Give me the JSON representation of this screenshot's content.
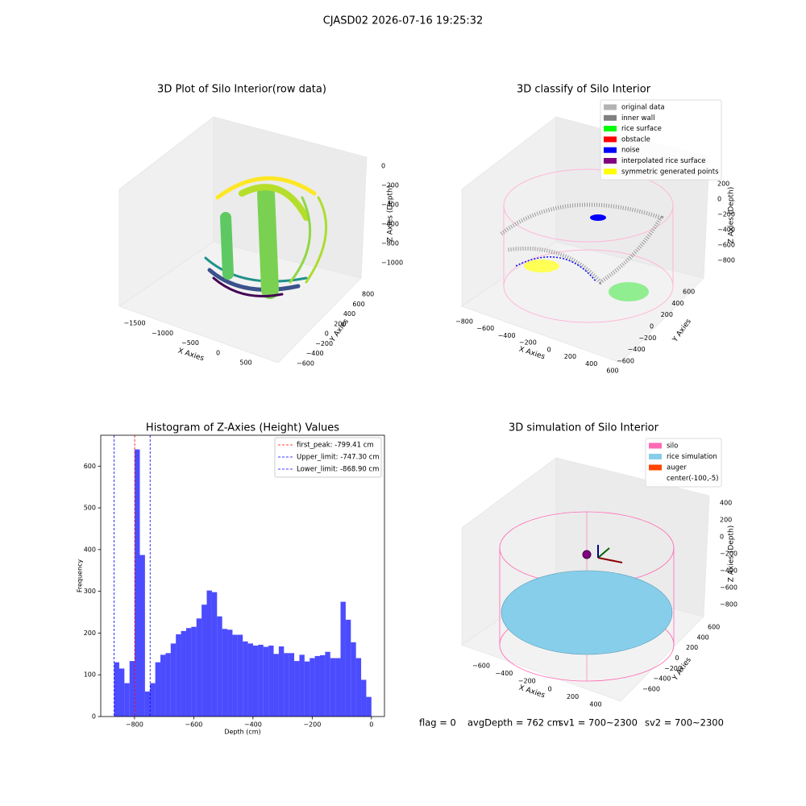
{
  "suptitle": "CJASD02 2026-07-16 19:25:32",
  "chart_data": [
    {
      "type": "scatter3d",
      "title": "3D Plot of Silo Interior(row data)",
      "xlabel": "X Axies",
      "ylabel": "Y Axies",
      "zlabel": "Z Axies (Depth)",
      "xticks": [
        {
          "value": -1500,
          "label": "−1500"
        },
        {
          "value": -1000,
          "label": "−1000"
        },
        {
          "value": -500,
          "label": "−500"
        },
        0,
        500
      ],
      "yticks": [
        {
          "value": -600,
          "label": "−600"
        },
        {
          "value": -400,
          "label": "−400"
        },
        {
          "value": -200,
          "label": "−200"
        },
        0,
        200,
        400,
        600,
        800
      ],
      "zticks": [
        {
          "value": -1000,
          "label": "−1000"
        },
        {
          "value": -800,
          "label": "−800"
        },
        {
          "value": -600,
          "label": "−600"
        },
        {
          "value": -400,
          "label": "−400"
        },
        {
          "value": -200,
          "label": "−200"
        },
        0
      ]
    },
    {
      "type": "scatter3d",
      "title": "3D classify of Silo Interior",
      "xlabel": "X Axies",
      "ylabel": "Y Axies",
      "zlabel": "Z Axies (Depth)",
      "xticks": [
        {
          "value": -800,
          "label": "−800"
        },
        {
          "value": -600,
          "label": "−600"
        },
        {
          "value": -400,
          "label": "−400"
        },
        {
          "value": -200,
          "label": "−200"
        },
        0,
        200,
        400,
        600
      ],
      "yticks": [
        {
          "value": -600,
          "label": "−600"
        },
        {
          "value": -400,
          "label": "−400"
        },
        {
          "value": -200,
          "label": "−200"
        },
        0,
        200,
        400,
        600
      ],
      "zticks": [
        {
          "value": -800,
          "label": "−800"
        },
        {
          "value": -600,
          "label": "−600"
        },
        {
          "value": -400,
          "label": "−400"
        },
        {
          "value": -200,
          "label": "−200"
        },
        0,
        200
      ],
      "legend": [
        {
          "name": "original data",
          "color": "#b3b3b3"
        },
        {
          "name": "inner wall",
          "color": "#808080"
        },
        {
          "name": "rice surface",
          "color": "#00ff00"
        },
        {
          "name": "obstacle",
          "color": "#ff0000"
        },
        {
          "name": "noise",
          "color": "#0000ff"
        },
        {
          "name": "interpolated rice surface",
          "color": "#800080"
        },
        {
          "name": "symmetric generated points",
          "color": "#ffff00"
        }
      ]
    },
    {
      "type": "histogram",
      "title": "Histogram of Z-Axies (Height) Values",
      "xlabel": "Depth (cm)",
      "ylabel": "Frequency",
      "color": "#0000ff",
      "alpha": 0.7,
      "legend_loc": "upper right",
      "bins": [
        -868.9,
        -851.522,
        -834.144,
        -816.766,
        -799.388,
        -782.01,
        -764.632,
        -747.254,
        -729.876,
        -712.498,
        -695.12,
        -677.742,
        -660.364,
        -642.986,
        -625.608,
        -608.23,
        -590.852,
        -573.474,
        -556.096,
        -538.718,
        -521.34,
        -503.962,
        -486.584,
        -469.206,
        -451.828,
        -434.45,
        -417.072,
        -399.694,
        -382.316,
        -364.938,
        -347.56,
        -330.182,
        -312.804,
        -295.426,
        -278.048,
        -260.67,
        -243.292,
        -225.914,
        -208.536,
        -191.158,
        -173.78,
        -156.402,
        -139.024,
        -121.646,
        -104.268,
        -86.89,
        -69.512,
        -52.134,
        -34.756,
        -17.378,
        0
      ],
      "counts": [
        130,
        115,
        80,
        133,
        640,
        387,
        60,
        80,
        130,
        148,
        152,
        175,
        197,
        205,
        212,
        215,
        235,
        268,
        302,
        298,
        240,
        210,
        208,
        196,
        196,
        180,
        175,
        170,
        172,
        167,
        170,
        150,
        168,
        152,
        152,
        133,
        148,
        132,
        140,
        145,
        147,
        155,
        140,
        140,
        275,
        232,
        178,
        140,
        88,
        47
      ],
      "xlim": [
        -914,
        44
      ],
      "ylim": [
        0,
        674
      ],
      "xticks": [
        {
          "value": -800,
          "label": "−800"
        },
        {
          "value": -600,
          "label": "−600"
        },
        {
          "value": -400,
          "label": "−400"
        },
        {
          "value": -200,
          "label": "−200"
        },
        0
      ],
      "yticks": [
        0,
        100,
        200,
        300,
        400,
        500,
        600
      ],
      "vlines": [
        {
          "label": "first_peak: -799.41 cm",
          "value": -799.41,
          "color": "#ff0000"
        },
        {
          "label": "Upper_limit: -747.30 cm",
          "value": -747.3,
          "color": "#0000ff"
        },
        {
          "label": "Lower_limit: -868.90 cm",
          "value": -868.9,
          "color": "#0000ff"
        }
      ]
    },
    {
      "type": "surface3d",
      "title": "3D simulation of Silo Interior",
      "xlabel": "X Axies",
      "ylabel": "Y Axies",
      "zlabel": "Z Axies (Depth)",
      "xticks": [
        {
          "value": -600,
          "label": "−600"
        },
        {
          "value": -400,
          "label": "−400"
        },
        {
          "value": -200,
          "label": "−200"
        },
        0,
        200,
        400
      ],
      "yticks": [
        {
          "value": -600,
          "label": "−600"
        },
        {
          "value": -400,
          "label": "−400"
        },
        {
          "value": -200,
          "label": "−200"
        },
        0,
        200,
        400,
        600
      ],
      "zticks": [
        {
          "value": -800,
          "label": "−800"
        },
        {
          "value": -600,
          "label": "−600"
        },
        {
          "value": -400,
          "label": "−400"
        },
        {
          "value": -200,
          "label": "−200"
        },
        0,
        200,
        400
      ],
      "legend": [
        {
          "name": "silo",
          "color": "#ff69b4"
        },
        {
          "name": "rice simulation",
          "color": "#87ceeb"
        },
        {
          "name": "auger",
          "color": "#ff4500"
        },
        {
          "name": "center(-100,-5)",
          "color": "#ffffff"
        }
      ],
      "footer": [
        "flag = 0",
        "avgDepth = 762 cm",
        "sv1 = 700~2300",
        "sv2 = 700~2300"
      ]
    }
  ]
}
